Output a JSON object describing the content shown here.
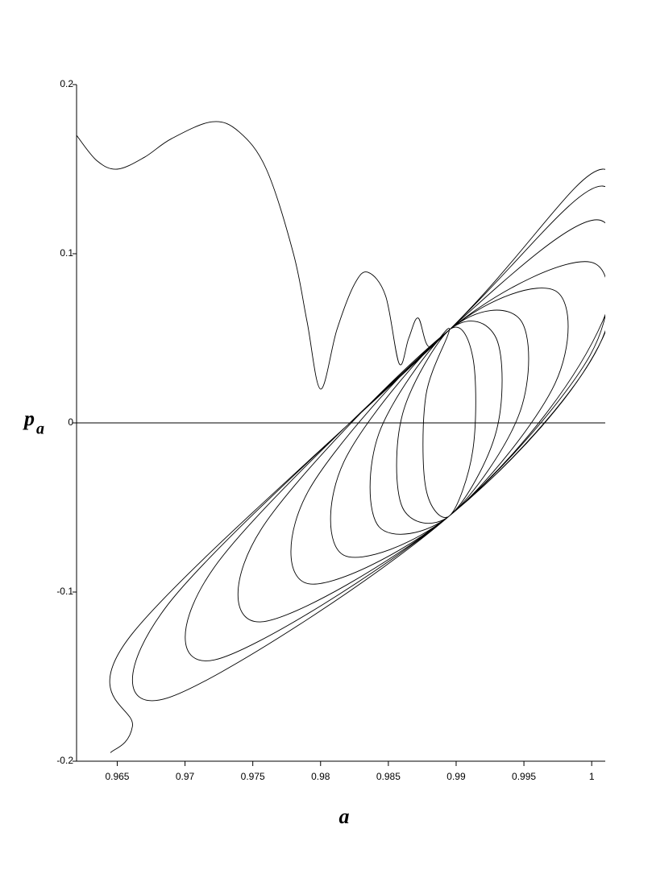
{
  "chart_data": {
    "type": "line",
    "x_label": "a",
    "y_label": "p",
    "y_label_sub": "a",
    "color": "#000000",
    "xlim": [
      0.962,
      1.001
    ],
    "ylim": [
      -0.2,
      0.2
    ],
    "xticks": [
      0.965,
      0.97,
      0.975,
      0.98,
      0.985,
      0.99,
      0.995,
      1
    ],
    "yticks": [
      -0.2,
      -0.1,
      0,
      0.1,
      0.2
    ],
    "x": [
      0.962,
      0.9635,
      0.965,
      0.967,
      0.969,
      0.972,
      0.974,
      0.976,
      0.978,
      0.979,
      0.98,
      0.9812,
      0.9825,
      0.9835,
      0.9848,
      0.9858,
      0.9865,
      0.9872,
      0.988,
      0.9895,
      0.98777,
      0.98777,
      0.9895,
      0.99123,
      0.99123,
      0.9895,
      0.98604,
      0.98604,
      0.9895,
      0.99296,
      0.99296,
      0.9895,
      0.9843,
      0.9843,
      0.9895,
      0.9947,
      0.9947,
      0.9895,
      0.98171,
      0.98171,
      0.9895,
      0.99729,
      0.99729,
      0.9895,
      0.97911,
      0.97911,
      0.9895,
      0.99989,
      0.99989,
      0.9895,
      0.97564,
      0.97564,
      0.9895,
      1.0005,
      1.0005,
      0.9895,
      0.97218,
      0.97218,
      0.9895,
      1.0008,
      1.0008,
      0.9895,
      0.96872,
      0.96872,
      0.9895,
      1.0008,
      1.0008,
      0.9895,
      0.96612,
      0.96612,
      0.9645
    ],
    "values": [
      0.17,
      0.155,
      0.15,
      0.157,
      0.168,
      0.178,
      0.172,
      0.15,
      0.1,
      0.06,
      0.02,
      0.055,
      0.082,
      0.089,
      0.075,
      0.035,
      0.05,
      0.062,
      0.045,
      0.055,
      0.0162,
      -0.0388,
      -0.055,
      -0.0162,
      0.0388,
      0.055,
      0.005,
      -0.05,
      -0.055,
      -0.005,
      0.05,
      0.055,
      -0.0063,
      -0.0613,
      -0.055,
      0.0063,
      0.0613,
      0.055,
      -0.0232,
      -0.0782,
      -0.055,
      0.0232,
      0.0782,
      0.055,
      -0.0401,
      -0.0951,
      -0.055,
      0.0401,
      0.0951,
      0.055,
      -0.0626,
      -0.1176,
      -0.055,
      0.045,
      0.12,
      0.055,
      -0.0851,
      -0.1401,
      -0.055,
      0.05,
      0.14,
      0.055,
      -0.1076,
      -0.1626,
      -0.055,
      0.06,
      0.15,
      0.055,
      -0.1245,
      -0.1795,
      -0.195
    ]
  }
}
